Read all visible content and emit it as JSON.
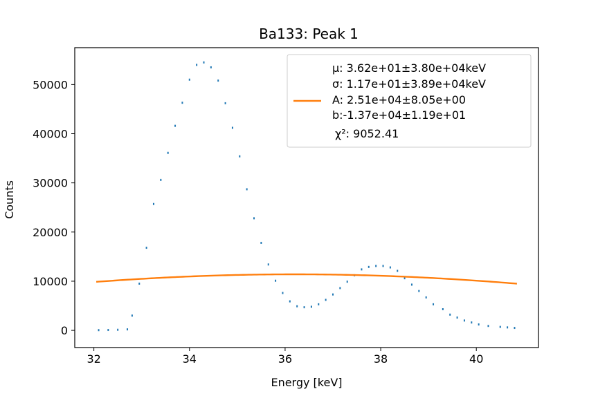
{
  "chart_data": {
    "type": "scatter",
    "title": "Ba133: Peak 1",
    "xlabel": "Energy [keV]",
    "ylabel": "Counts",
    "xlim": [
      31.6,
      41.3
    ],
    "ylim": [
      -3500,
      57500
    ],
    "xticks": [
      "32",
      "34",
      "36",
      "38",
      "40"
    ],
    "yticks": [
      "0",
      "10000",
      "20000",
      "30000",
      "40000",
      "50000"
    ],
    "grid": false,
    "legend_position": "top-right",
    "colors": {
      "data": "#1f77b4",
      "fit": "#ff7f0e"
    },
    "series": [
      {
        "type": "scatter",
        "values": [
          [
            32.1,
            50
          ],
          [
            32.3,
            80
          ],
          [
            32.5,
            120
          ],
          [
            32.7,
            200
          ],
          [
            32.8,
            3000
          ],
          [
            32.95,
            9500
          ],
          [
            33.1,
            16800
          ],
          [
            33.25,
            25700
          ],
          [
            33.4,
            30600
          ],
          [
            33.55,
            36100
          ],
          [
            33.7,
            41600
          ],
          [
            33.85,
            46300
          ],
          [
            34.0,
            51000
          ],
          [
            34.15,
            54000
          ],
          [
            34.3,
            54500
          ],
          [
            34.45,
            53500
          ],
          [
            34.6,
            50800
          ],
          [
            34.75,
            46200
          ],
          [
            34.9,
            41200
          ],
          [
            35.05,
            35400
          ],
          [
            35.2,
            28700
          ],
          [
            35.35,
            22800
          ],
          [
            35.5,
            17800
          ],
          [
            35.65,
            13400
          ],
          [
            35.8,
            10100
          ],
          [
            35.95,
            7600
          ],
          [
            36.1,
            5900
          ],
          [
            36.25,
            4900
          ],
          [
            36.4,
            4700
          ],
          [
            36.55,
            4800
          ],
          [
            36.7,
            5300
          ],
          [
            36.85,
            6200
          ],
          [
            37.0,
            7300
          ],
          [
            37.15,
            8600
          ],
          [
            37.3,
            9900
          ],
          [
            37.45,
            11200
          ],
          [
            37.6,
            12400
          ],
          [
            37.75,
            12900
          ],
          [
            37.9,
            13100
          ],
          [
            38.05,
            13100
          ],
          [
            38.2,
            12800
          ],
          [
            38.35,
            12100
          ],
          [
            38.5,
            10600
          ],
          [
            38.65,
            9300
          ],
          [
            38.8,
            8000
          ],
          [
            38.95,
            6700
          ],
          [
            39.1,
            5300
          ],
          [
            39.3,
            4300
          ],
          [
            39.45,
            3200
          ],
          [
            39.6,
            2600
          ],
          [
            39.75,
            2000
          ],
          [
            39.9,
            1600
          ],
          [
            40.05,
            1200
          ],
          [
            40.25,
            900
          ],
          [
            40.5,
            700
          ],
          [
            40.65,
            600
          ],
          [
            40.8,
            500
          ]
        ]
      },
      {
        "type": "line",
        "fit_params": {
          "mu": 36.2,
          "sigma": 11.7,
          "A": 25100,
          "b": -13700,
          "x_start": 32.05,
          "x_end": 40.85
        }
      }
    ],
    "legend": {
      "lines": [
        "μ: 3.62e+01±3.80e+04keV",
        "σ: 1.17e+01±3.89e+04keV",
        "A: 2.51e+04±8.05e+00",
        "b:-1.37e+04±1.19e+01",
        "χ²: 9052.41"
      ]
    }
  }
}
